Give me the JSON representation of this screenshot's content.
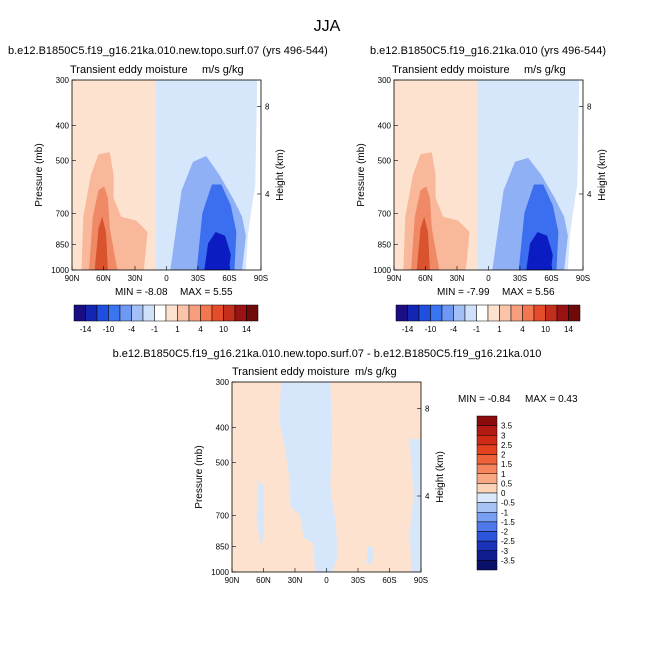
{
  "figure": {
    "title": "JJA"
  },
  "colors": {
    "neg_strong": "#0a1cc2",
    "neg_mid": "#3c6ef0",
    "neg_light": "#8fb0f5",
    "neg_pale": "#d6e6fb",
    "pos_pale": "#fde3cf",
    "pos_light": "#f9b89a",
    "pos_mid": "#f08a66",
    "pos_strong": "#d8532e"
  },
  "chart_data": [
    {
      "type": "heatmap",
      "panel": "top-left",
      "title": "b.e12.B1850C5.f19_g16.21ka.010.new.topo.surf.07 (yrs 496-544)",
      "left_label": "Transient eddy moisture",
      "right_label": "m/s g/kg",
      "xlabel": "",
      "ylabel": "Pressure (mb)",
      "ylabel_right": "Height (km)",
      "x_ticks": [
        "90N",
        "60N",
        "30N",
        "0",
        "30S",
        "60S",
        "90S"
      ],
      "y_ticks": [
        "300",
        "400",
        "500",
        "700",
        "850",
        "1000"
      ],
      "y_ticks_right": [
        "8",
        "4"
      ],
      "min_label": "MIN = -8.08",
      "max_label": "MAX =  5.55",
      "min": -8.08,
      "max": 5.55,
      "colorbar": {
        "orientation": "horizontal",
        "labels": [
          "-14",
          "-10",
          "-4",
          "-1",
          "1",
          "4",
          "10",
          "14"
        ],
        "colors": [
          "#1a0e82",
          "#1326b3",
          "#1f4fe0",
          "#3a74f0",
          "#6f98f3",
          "#a2bff6",
          "#cfe0fb",
          "#ffffff",
          "#fde3cf",
          "#fbc4a8",
          "#f79e7c",
          "#f2764f",
          "#e54c2a",
          "#c42e1c",
          "#9a1212",
          "#6e0a0a"
        ]
      }
    },
    {
      "type": "heatmap",
      "panel": "top-right",
      "title": "b.e12.B1850C5.f19_g16.21ka.010 (yrs 496-544)",
      "left_label": "Transient eddy moisture",
      "right_label": "m/s g/kg",
      "xlabel": "",
      "ylabel": "Pressure (mb)",
      "ylabel_right": "Height (km)",
      "x_ticks": [
        "90N",
        "60N",
        "30N",
        "0",
        "30S",
        "60S",
        "90S"
      ],
      "y_ticks": [
        "300",
        "400",
        "500",
        "700",
        "850",
        "1000"
      ],
      "y_ticks_right": [
        "8",
        "4"
      ],
      "min_label": "MIN = -7.99",
      "max_label": "MAX =  5.56",
      "min": -7.99,
      "max": 5.56,
      "colorbar": {
        "orientation": "horizontal",
        "labels": [
          "-14",
          "-10",
          "-4",
          "-1",
          "1",
          "4",
          "10",
          "14"
        ],
        "colors": [
          "#1a0e82",
          "#1326b3",
          "#1f4fe0",
          "#3a74f0",
          "#6f98f3",
          "#a2bff6",
          "#cfe0fb",
          "#ffffff",
          "#fde3cf",
          "#fbc4a8",
          "#f79e7c",
          "#f2764f",
          "#e54c2a",
          "#c42e1c",
          "#9a1212",
          "#6e0a0a"
        ]
      }
    },
    {
      "type": "heatmap",
      "panel": "bottom",
      "title": "b.e12.B1850C5.f19_g16.21ka.010.new.topo.surf.07 - b.e12.B1850C5.f19_g16.21ka.010",
      "left_label": "Transient eddy moisture",
      "right_label": "m/s g/kg",
      "xlabel": "",
      "ylabel": "Pressure (mb)",
      "ylabel_right": "Height (km)",
      "x_ticks": [
        "90N",
        "60N",
        "30N",
        "0",
        "30S",
        "60S",
        "90S"
      ],
      "y_ticks": [
        "300",
        "400",
        "500",
        "700",
        "850",
        "1000"
      ],
      "y_ticks_right": [
        "8",
        "4"
      ],
      "min_label": "MIN = -0.84",
      "max_label": "MAX =  0.43",
      "min": -0.84,
      "max": 0.43,
      "colorbar": {
        "orientation": "vertical",
        "labels": [
          "3.5",
          "3",
          "2.5",
          "2",
          "1.5",
          "1",
          "0.5",
          "0",
          "-0.5",
          "-1",
          "-1.5",
          "-2",
          "-2.5",
          "-3",
          "-3.5"
        ],
        "colors": [
          "#8b0a0a",
          "#b01a10",
          "#cf2a16",
          "#e4421f",
          "#f0623a",
          "#f5855c",
          "#f9a884",
          "#fdd3b8",
          "#d9e8fb",
          "#a7c3f6",
          "#789ff1",
          "#4d79ea",
          "#2a55dc",
          "#1a32b8",
          "#101d8f",
          "#0a0f6a"
        ]
      }
    }
  ]
}
